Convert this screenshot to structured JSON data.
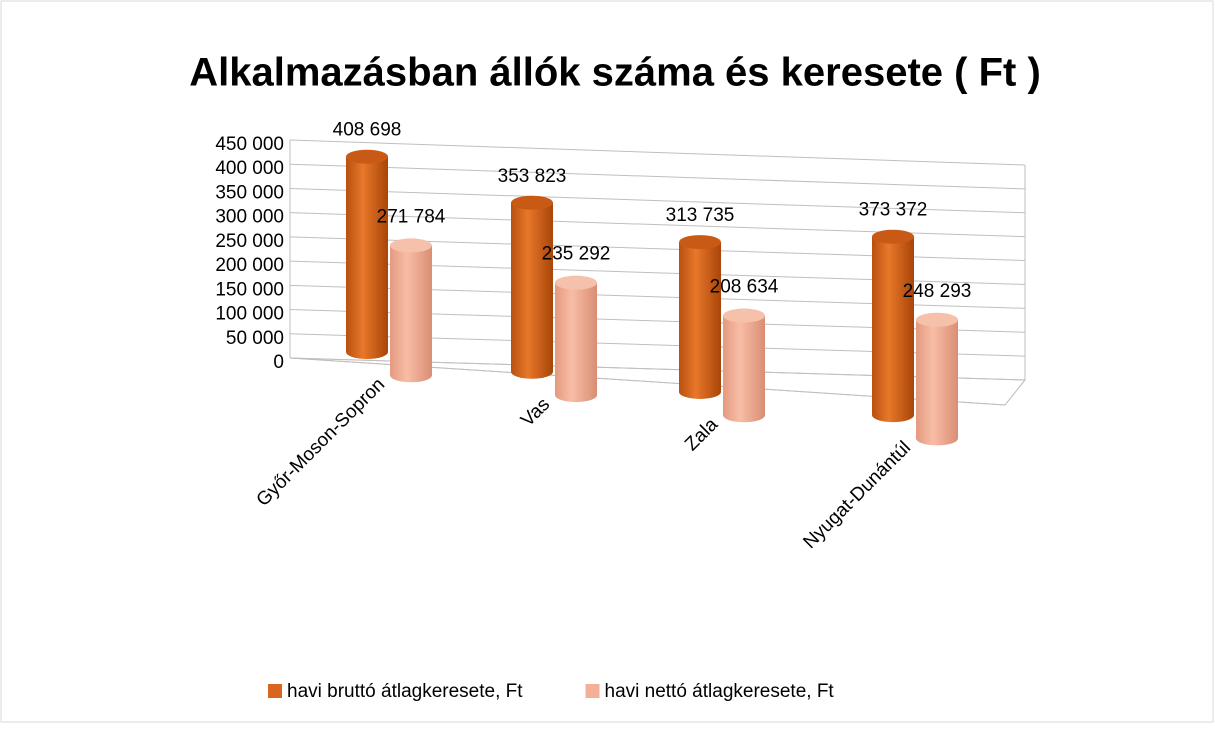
{
  "chart_data": {
    "type": "bar3d",
    "title": "Alkalmazásban állók száma és keresete ( Ft )",
    "categories": [
      "Győr-Moson-Sopron",
      "Vas",
      "Zala",
      "Nyugat-Dunántúl"
    ],
    "series": [
      {
        "name": "havi bruttó átlagkeresete, Ft",
        "color": "#d9661f",
        "values": [
          408698,
          353823,
          313735,
          373372
        ],
        "value_labels": [
          "408 698",
          "353 823",
          "313 735",
          "373 372"
        ]
      },
      {
        "name": "havi nettó átlagkeresete, Ft",
        "color": "#f4b097",
        "values": [
          271784,
          235292,
          208634,
          248293
        ],
        "value_labels": [
          "271 784",
          "235 292",
          "208 634",
          "248 293"
        ]
      }
    ],
    "ylim": [
      0,
      450000
    ],
    "yticks": [
      0,
      {
        "value": 50000,
        "label": "50 000"
      },
      {
        "value": 100000,
        "label": "100 000"
      },
      {
        "value": 150000,
        "label": "150 000"
      },
      {
        "value": 200000,
        "label": "200 000"
      },
      {
        "value": 250000,
        "label": "250 000"
      },
      {
        "value": 300000,
        "label": "300 000"
      },
      {
        "value": 350000,
        "label": "350 000"
      },
      {
        "value": 400000,
        "label": "400 000"
      },
      {
        "value": 450000,
        "label": "450 000"
      }
    ],
    "grid": true,
    "legend": "bottom"
  }
}
